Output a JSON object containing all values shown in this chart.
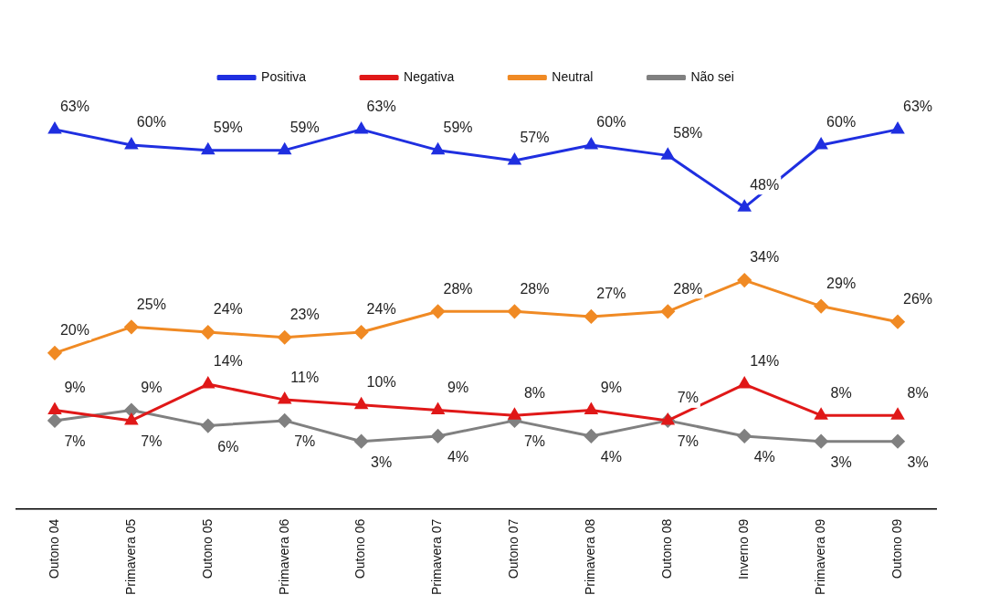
{
  "chart_data": {
    "type": "line",
    "categories": [
      "Outono 04",
      "Primavera 05",
      "Outono 05",
      "Primavera 06",
      "Outono 06",
      "Primavera 07",
      "Outono 07",
      "Primavera 08",
      "Outono 08",
      "Inverno 09",
      "Primavera 09",
      "Outono 09"
    ],
    "series": [
      {
        "name": "Positiva",
        "color": "#1f2fe0",
        "marker": "triangle",
        "values": [
          63,
          60,
          59,
          59,
          63,
          59,
          57,
          60,
          58,
          48,
          60,
          63
        ],
        "value_labels": [
          "63%",
          "60%",
          "59%",
          "59%",
          "63%",
          "59%",
          "57%",
          "60%",
          "58%",
          "48%",
          "60%",
          "63%"
        ]
      },
      {
        "name": "Negativa",
        "color": "#e01818",
        "marker": "triangle",
        "values": [
          9,
          7,
          14,
          11,
          10,
          9,
          8,
          9,
          7,
          14,
          8,
          8
        ],
        "value_labels": [
          "9%",
          "7%",
          "14%",
          "11%",
          "10%",
          "9%",
          "8%",
          "9%",
          "7%",
          "14%",
          "8%",
          "8%"
        ]
      },
      {
        "name": "Neutral",
        "color": "#f08a24",
        "marker": "diamond",
        "values": [
          20,
          25,
          24,
          23,
          24,
          28,
          28,
          27,
          28,
          34,
          29,
          26
        ],
        "value_labels": [
          "20%",
          "25%",
          "24%",
          "23%",
          "24%",
          "28%",
          "28%",
          "27%",
          "28%",
          "34%",
          "29%",
          "26%"
        ]
      },
      {
        "name": "Não sei",
        "color": "#808080",
        "marker": "diamond",
        "values": [
          7,
          9,
          6,
          7,
          3,
          4,
          7,
          4,
          7,
          4,
          3,
          3
        ],
        "value_labels": [
          "7%",
          "9%",
          "6%",
          "7%",
          "3%",
          "4%",
          "7%",
          "4%",
          "7%",
          "4%",
          "3%",
          "3%"
        ]
      }
    ],
    "tick_labels": "x",
    "grid": false,
    "legend": "top"
  }
}
